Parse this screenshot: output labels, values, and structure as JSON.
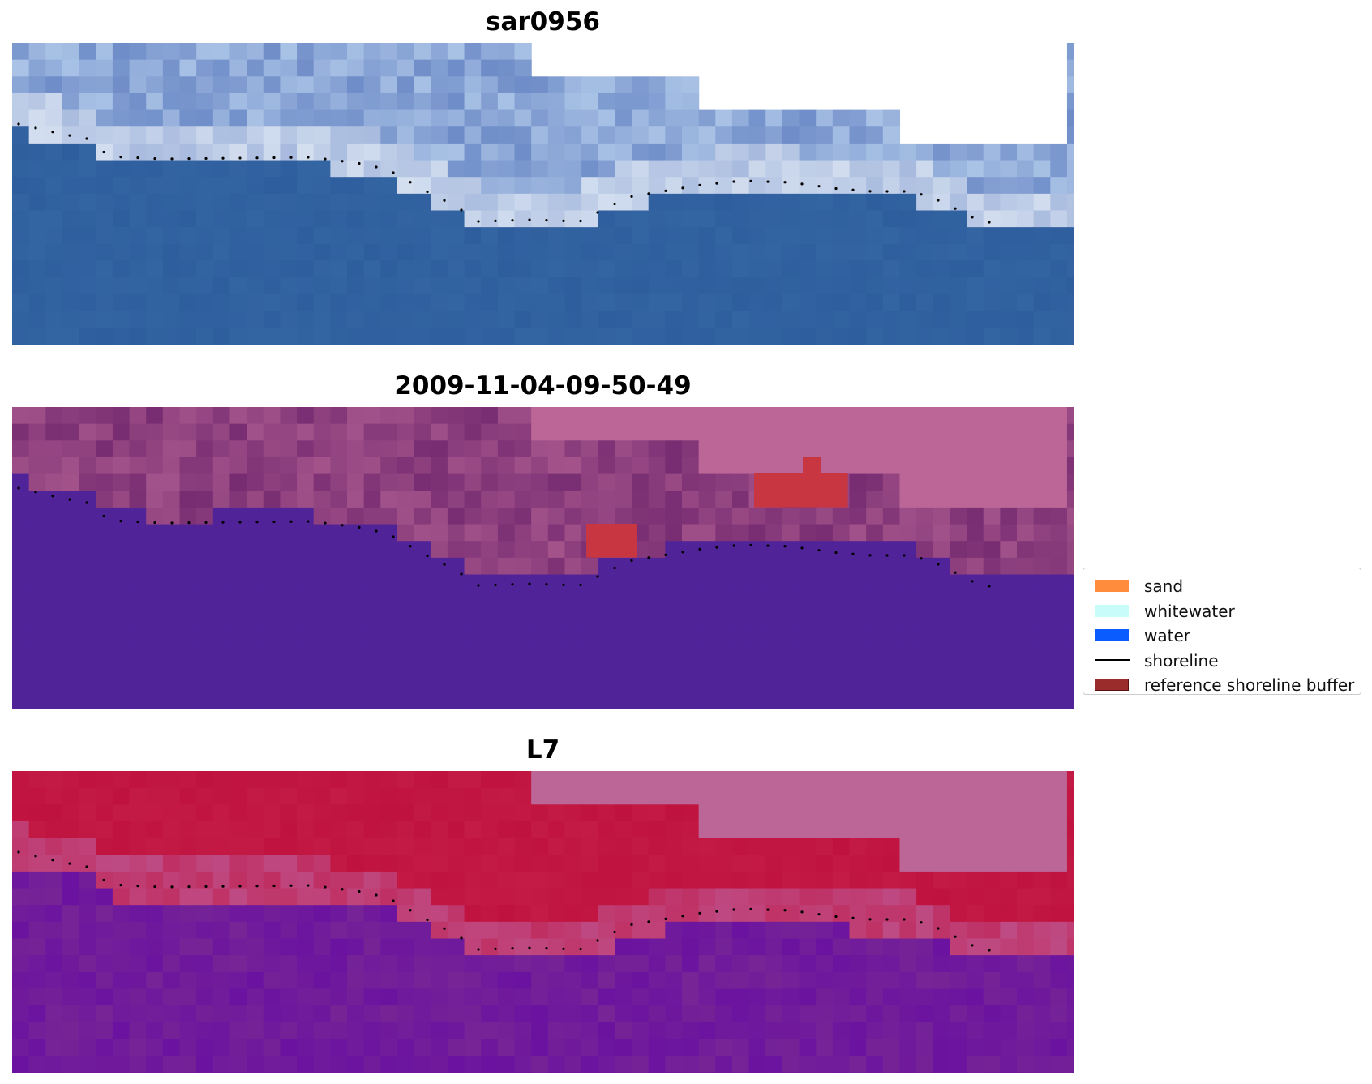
{
  "panels": [
    {
      "id": "rgb",
      "title": "sar0956"
    },
    {
      "id": "classified",
      "title": "2009-11-04-09-50-49"
    },
    {
      "id": "index",
      "title": "L7"
    }
  ],
  "legend": {
    "items": [
      {
        "label": "sand",
        "kind": "patch",
        "color": "#ff8c3c"
      },
      {
        "label": "whitewater",
        "kind": "patch",
        "color": "#c8fcfa"
      },
      {
        "label": "water",
        "kind": "patch",
        "color": "#0a5cff"
      },
      {
        "label": "shoreline",
        "kind": "line",
        "color": "#000000"
      },
      {
        "label": "reference shoreline buffer",
        "kind": "patch",
        "color": "#9b2c2c",
        "edge": "#5a1010"
      }
    ]
  },
  "colors": {
    "rgb_water": "#2f5e9e",
    "rgb_whitewater": "#dfe8f4",
    "classified_water": "#512399",
    "classified_land": "#b96696",
    "classified_buffer": "#c73641",
    "index_land": "#c0123f",
    "index_water": "#762496",
    "nodata": "#bb6697"
  }
}
